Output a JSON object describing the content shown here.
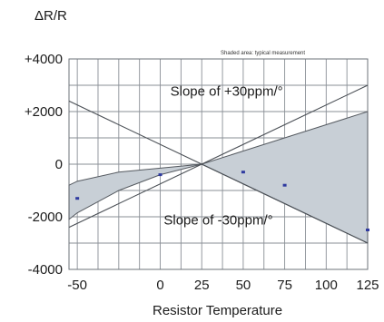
{
  "chart_data": {
    "type": "line",
    "title": "",
    "ylabel": "ΔR/R",
    "xlabel": "Resistor Temperature",
    "xlim": [
      -55,
      125
    ],
    "ylim": [
      -4000,
      4000
    ],
    "x_ticks": [
      -50,
      0,
      25,
      50,
      75,
      100,
      125
    ],
    "x_tick_labels": [
      "-50",
      "0",
      "25",
      "50",
      "75",
      "100",
      "125"
    ],
    "y_ticks": [
      4000,
      2000,
      0,
      -2000,
      -4000
    ],
    "y_tick_labels": [
      "+4000",
      "+2000",
      "0",
      "-2000",
      "-4000"
    ],
    "grid": true,
    "shaded_note": "Shaded area: typical measurement",
    "series": [
      {
        "type": "line",
        "x": [
          -55,
          125
        ],
        "y": [
          -2400,
          3000
        ]
      },
      {
        "type": "line",
        "x": [
          -55,
          125
        ],
        "y": [
          2400,
          -3000
        ]
      },
      {
        "type": "scatter",
        "x": [
          -50,
          0,
          50,
          75,
          125
        ],
        "y": [
          -1300,
          -400,
          -300,
          -800,
          -2500
        ]
      }
    ],
    "shaded_band": {
      "x": [
        -55,
        -50,
        -25,
        0,
        25,
        50,
        75,
        100,
        125
      ],
      "upper": [
        -800,
        -650,
        -300,
        -150,
        0,
        500,
        1000,
        1500,
        2000
      ],
      "lower": [
        -2100,
        -1850,
        -1000,
        -400,
        0,
        -750,
        -1500,
        -2250,
        -3000
      ]
    },
    "annotations": [
      {
        "text": "Slope of +30ppm/°",
        "x": 40,
        "y": 2600
      },
      {
        "text": "Slope of -30ppm/°",
        "x": 35,
        "y": -2300
      }
    ]
  }
}
